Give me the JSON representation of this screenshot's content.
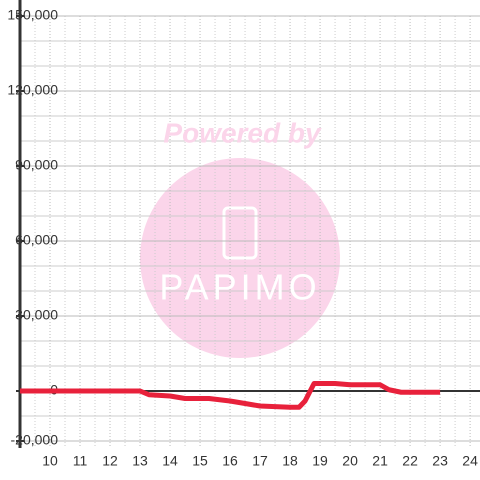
{
  "chart_data": {
    "type": "line",
    "watermark": [
      "Powered by",
      "PAPIMO"
    ],
    "x": [
      9,
      13,
      13.3,
      14,
      14.5,
      15.3,
      16,
      16.5,
      17,
      18,
      18.3,
      18.5,
      18.8,
      19.5,
      20,
      21,
      21.3,
      21.7,
      23
    ],
    "series": [
      {
        "color": "#e8213b",
        "values": [
          0,
          0,
          -1500,
          -2000,
          -3000,
          -3000,
          -4000,
          -5000,
          -6000,
          -6500,
          -6500,
          -4000,
          3000,
          3000,
          2500,
          2500,
          500,
          -500,
          -500
        ]
      }
    ],
    "xlim": [
      9,
      24.33
    ],
    "xticks": [
      10,
      11,
      12,
      13,
      14,
      15,
      16,
      17,
      18,
      19,
      20,
      21,
      22,
      23,
      24
    ],
    "xminor_ticks": [
      9.5,
      10.5,
      11.5,
      12.5,
      13.5,
      14.5,
      15.5,
      16.5,
      17.5,
      18.5,
      19.5,
      20.5,
      21.5,
      22.5,
      23.5
    ],
    "ylim": [
      -20000,
      150000
    ],
    "yticks": [
      {
        "value": -20000,
        "label": "-20,000"
      },
      0,
      {
        "value": 30000,
        "label": "30,000"
      },
      {
        "value": 60000,
        "label": "60,000"
      },
      {
        "value": 90000,
        "label": "90,000"
      },
      {
        "value": 120000,
        "label": "120,000"
      },
      {
        "value": 150000,
        "label": "150,000"
      }
    ],
    "yminor_ticks": [
      -10000,
      10000,
      20000,
      40000,
      50000,
      70000,
      80000,
      100000,
      110000,
      130000,
      140000
    ],
    "grid": true
  }
}
